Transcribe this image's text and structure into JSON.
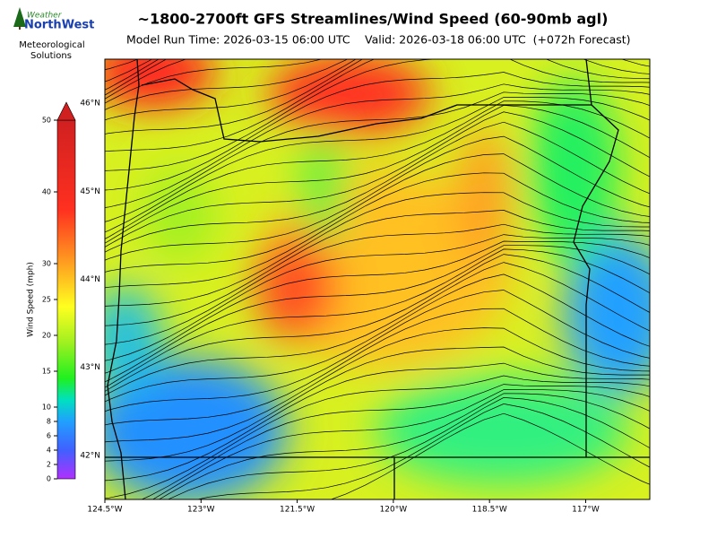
{
  "header": {
    "title": "~1800-2700ft GFS Streamlines/Wind Speed (60-90mb agl)",
    "model_run": "Model Run Time: 2026-03-15 06:00 UTC",
    "valid": "Valid: 2026-03-18 06:00 UTC  (+072h Forecast)"
  },
  "logo": {
    "brand_top": "Weather",
    "brand_main": "NorthWest",
    "caption_lines": [
      "Meteorological",
      "Solutions"
    ]
  },
  "chart_data": {
    "type": "map",
    "xlim": [
      -124.5,
      -116
    ],
    "ylim": [
      41.5,
      46.5
    ],
    "xticks": [
      {
        "value": -124.5,
        "label": "124.5°W"
      },
      {
        "value": -123,
        "label": "123°W"
      },
      {
        "value": -121.5,
        "label": "121.5°W"
      },
      {
        "value": -120,
        "label": "120°W"
      },
      {
        "value": -118.5,
        "label": "118.5°W"
      },
      {
        "value": -117,
        "label": "117°W"
      }
    ],
    "yticks": [
      {
        "value": 42,
        "label": "42°N"
      },
      {
        "value": 43,
        "label": "43°N"
      },
      {
        "value": 44,
        "label": "44°N"
      },
      {
        "value": 45,
        "label": "45°N"
      },
      {
        "value": 46,
        "label": "46°N"
      }
    ],
    "colorbar": {
      "label": "Wind Speed (mph)",
      "lim": [
        0,
        50
      ],
      "ticks": [
        0,
        2,
        4,
        6,
        8,
        10,
        15,
        20,
        25,
        30,
        40,
        50
      ]
    }
  }
}
